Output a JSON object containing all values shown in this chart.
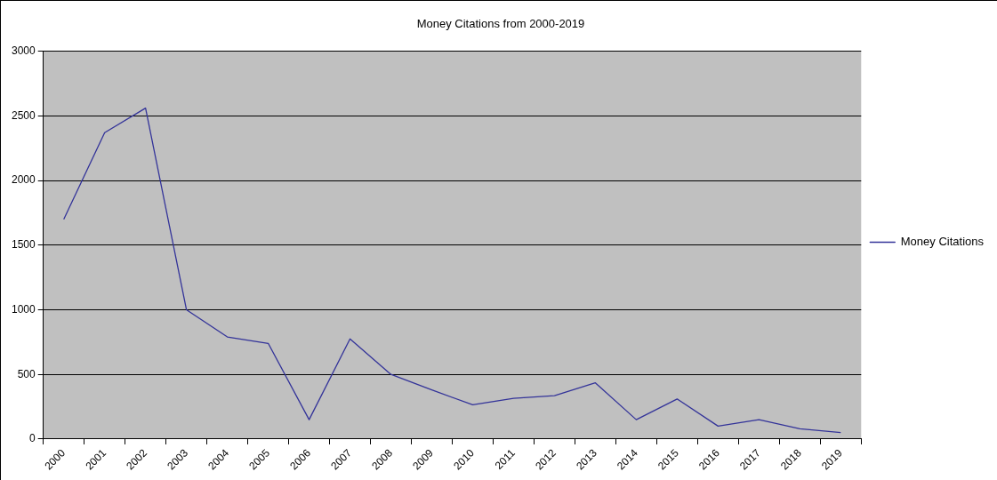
{
  "chart_data": {
    "type": "line",
    "title": "Money Citations from 2000-2019",
    "categories": [
      "2000",
      "2001",
      "2002",
      "2003",
      "2004",
      "2005",
      "2006",
      "2007",
      "2008",
      "2009",
      "2010",
      "2011",
      "2012",
      "2013",
      "2014",
      "2015",
      "2016",
      "2017",
      "2018",
      "2019"
    ],
    "series": [
      {
        "name": "Money Citations",
        "color": "#333399",
        "values": [
          1700,
          2370,
          2560,
          1000,
          790,
          740,
          150,
          775,
          500,
          380,
          265,
          315,
          335,
          435,
          150,
          310,
          100,
          150,
          80,
          50
        ]
      }
    ],
    "ylim": [
      0,
      3000
    ],
    "yticks": [
      0,
      500,
      1000,
      1500,
      2000,
      2500,
      3000
    ],
    "grid": "y",
    "legend": "right",
    "marker": "none",
    "line_style": "solid"
  }
}
